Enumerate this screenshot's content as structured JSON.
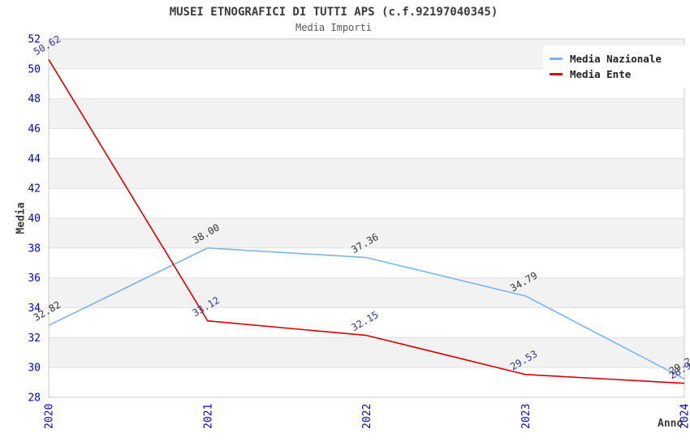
{
  "title": "MUSEI ETNOGRAFICI DI TUTTI APS (c.f.92197040345)",
  "subtitle": "Media Importi",
  "colors": {
    "axis_tick_label": "#0000dd",
    "band_fill": "#f2f2f2",
    "gridline": "#e0e0e0",
    "plot_border": "#c9c9c9",
    "title_text": "#3a3a3a",
    "legend_text": "#222222",
    "nazionale_line": "#7cb5ec",
    "ente_line": "#d40000"
  },
  "legend": {
    "position": "top-right",
    "items": [
      {
        "label": "Media Nazionale",
        "color": "#7cb5ec"
      },
      {
        "label": "Media Ente",
        "color": "#d40000"
      }
    ]
  },
  "chart_data": {
    "type": "line",
    "title": "MUSEI ETNOGRAFICI DI TUTTI APS (c.f.92197040345)",
    "subtitle": "Media Importi",
    "xlabel": "Anno",
    "ylabel": "Media",
    "x": [
      2020,
      2021,
      2022,
      2023,
      2024
    ],
    "xticks": [
      "2020",
      "2021",
      "2022",
      "2023",
      "2024"
    ],
    "ylim": [
      28,
      52
    ],
    "ytick_step": 2,
    "yticks": [
      28,
      30,
      32,
      34,
      36,
      38,
      40,
      42,
      44,
      46,
      48,
      50,
      52
    ],
    "grid": true,
    "legend_position": "top-right",
    "series": [
      {
        "name": "Media Nazionale",
        "color": "#7cb5ec",
        "label_color": "#333333",
        "values": [
          32.82,
          38.0,
          37.36,
          34.79,
          29.24
        ]
      },
      {
        "name": "Media Ente",
        "color": "#d40000",
        "label_color": "#333399",
        "values": [
          50.62,
          33.12,
          32.15,
          29.53,
          28.94
        ]
      }
    ]
  }
}
